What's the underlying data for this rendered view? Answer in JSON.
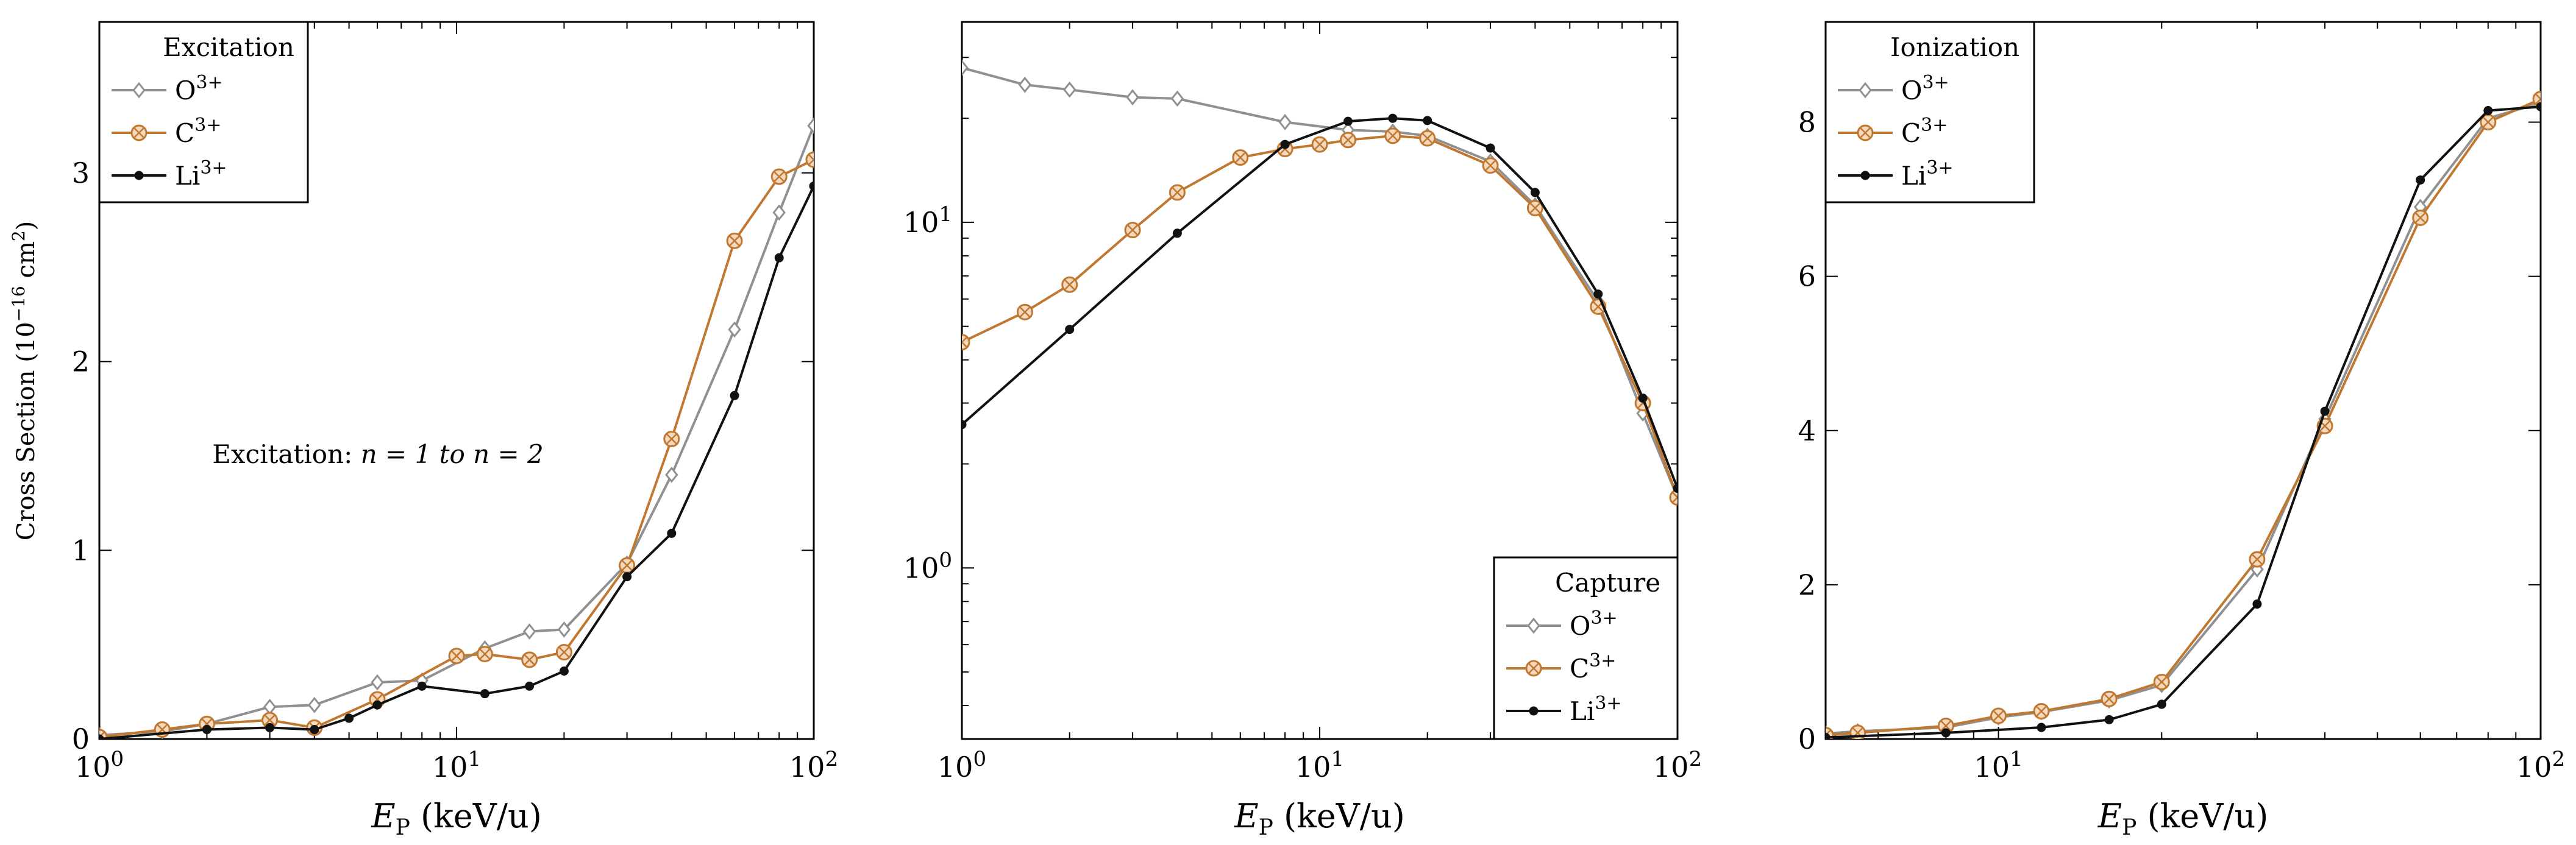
{
  "chart_data": [
    {
      "type": "line",
      "panel": "excitation",
      "xscale": "log",
      "yscale": "linear",
      "xlim": [
        1,
        100
      ],
      "ylim": [
        0,
        3.8
      ],
      "xticks": [
        1,
        10,
        100
      ],
      "xticklabels": [
        "10^0",
        "10^1",
        "10^2"
      ],
      "yticks": [
        0,
        1,
        2,
        3
      ],
      "yticklabels": [
        "0",
        "1",
        "2",
        "3"
      ],
      "xlabel": {
        "main": "E",
        "sub": "P",
        "rest": " (keV/u)"
      },
      "ylabel": {
        "pre": "Cross Section (10",
        "exp": "−16",
        "mid": " cm",
        "exp2": "2",
        "post": ")"
      },
      "annotation": {
        "text": "Excitation: ",
        "math": "n = 1 to n = 2"
      },
      "legend": {
        "title": "Excitation",
        "position": "top-left"
      },
      "series": [
        {
          "name": "O3+",
          "label": "O",
          "charge": "3+",
          "color": "#909090",
          "marker": "diamond",
          "x": [
            1,
            1.5,
            2,
            3,
            4,
            6,
            8,
            12,
            16,
            20,
            30,
            40,
            60,
            80,
            100
          ],
          "y": [
            0.02,
            0.04,
            0.08,
            0.17,
            0.18,
            0.3,
            0.31,
            0.48,
            0.57,
            0.58,
            0.93,
            1.4,
            2.17,
            2.79,
            3.25
          ]
        },
        {
          "name": "C3+",
          "label": "C",
          "charge": "3+",
          "color": "#c07830",
          "marker": "otimes",
          "x": [
            1,
            1.5,
            2,
            3,
            4,
            6,
            10,
            12,
            16,
            20,
            30,
            40,
            60,
            80,
            100
          ],
          "y": [
            0.01,
            0.05,
            0.08,
            0.1,
            0.06,
            0.21,
            0.44,
            0.45,
            0.42,
            0.46,
            0.92,
            1.59,
            2.64,
            2.98,
            3.07
          ]
        },
        {
          "name": "Li3+",
          "label": "Li",
          "charge": "3+",
          "color": "#111111",
          "marker": "dot",
          "x": [
            1,
            2,
            3,
            4,
            5,
            6,
            8,
            12,
            16,
            20,
            30,
            40,
            60,
            80,
            100
          ],
          "y": [
            0.0,
            0.05,
            0.06,
            0.05,
            0.11,
            0.18,
            0.28,
            0.24,
            0.28,
            0.36,
            0.86,
            1.09,
            1.82,
            2.55,
            2.93
          ]
        }
      ]
    },
    {
      "type": "line",
      "panel": "capture",
      "xscale": "log",
      "yscale": "log",
      "xlim": [
        1,
        100
      ],
      "ylim": [
        0.32,
        38
      ],
      "xticks": [
        1,
        10,
        100
      ],
      "xticklabels": [
        "10^0",
        "10^1",
        "10^2"
      ],
      "yticks": [
        1,
        10
      ],
      "yticklabels": [
        "10^0",
        "10^1"
      ],
      "xlabel": {
        "main": "E",
        "sub": "P",
        "rest": " (keV/u)"
      },
      "legend": {
        "title": "Capture",
        "position": "bottom-right"
      },
      "series": [
        {
          "name": "O3+",
          "label": "O",
          "charge": "3+",
          "color": "#909090",
          "marker": "diamond",
          "x": [
            1,
            1.5,
            2,
            3,
            4,
            8,
            12,
            16,
            20,
            30,
            40,
            60,
            80,
            100
          ],
          "y": [
            28,
            25,
            24.2,
            23,
            22.8,
            19.5,
            18.5,
            18.3,
            17.8,
            15,
            11.2,
            5.9,
            2.8,
            1.6
          ]
        },
        {
          "name": "C3+",
          "label": "C",
          "charge": "3+",
          "color": "#c07830",
          "marker": "otimes",
          "x": [
            1,
            1.5,
            2,
            3,
            4,
            6,
            8,
            10,
            12,
            16,
            20,
            30,
            40,
            60,
            80,
            100
          ],
          "y": [
            4.5,
            5.5,
            6.6,
            9.5,
            12.2,
            15.4,
            16.3,
            16.8,
            17.3,
            17.8,
            17.5,
            14.6,
            11.0,
            5.7,
            3.0,
            1.6
          ]
        },
        {
          "name": "Li3+",
          "label": "Li",
          "charge": "3+",
          "color": "#111111",
          "marker": "dot",
          "x": [
            1,
            2,
            4,
            8,
            12,
            16,
            20,
            30,
            40,
            60,
            80,
            100
          ],
          "y": [
            2.6,
            4.9,
            9.3,
            16.8,
            19.6,
            20.0,
            19.7,
            16.4,
            12.2,
            6.2,
            3.1,
            1.7
          ]
        }
      ]
    },
    {
      "type": "line",
      "panel": "ionization",
      "xscale": "log",
      "yscale": "linear",
      "xlim": [
        4.8,
        100
      ],
      "ylim": [
        0,
        9.3
      ],
      "xticks": [
        10,
        100
      ],
      "xticklabels": [
        "10^1",
        "10^2"
      ],
      "yticks": [
        0,
        2,
        4,
        6,
        8
      ],
      "yticklabels": [
        "0",
        "2",
        "4",
        "6",
        "8"
      ],
      "xlabel": {
        "main": "E",
        "sub": "P",
        "rest": " (keV/u)"
      },
      "legend": {
        "title": "Ionization",
        "position": "top-left"
      },
      "series": [
        {
          "name": "O3+",
          "label": "O",
          "charge": "3+",
          "color": "#909090",
          "marker": "diamond",
          "x": [
            4.8,
            5.5,
            8,
            10,
            12,
            16,
            20,
            30,
            40,
            60,
            80,
            100
          ],
          "y": [
            0.07,
            0.1,
            0.15,
            0.28,
            0.35,
            0.5,
            0.7,
            2.2,
            4.15,
            6.9,
            8.05,
            8.25
          ]
        },
        {
          "name": "C3+",
          "label": "C",
          "charge": "3+",
          "color": "#c07830",
          "marker": "otimes",
          "x": [
            4.8,
            5.5,
            8,
            10,
            12,
            16,
            20,
            30,
            40,
            60,
            80,
            100
          ],
          "y": [
            0.05,
            0.08,
            0.17,
            0.3,
            0.36,
            0.52,
            0.74,
            2.33,
            4.06,
            6.76,
            8.0,
            8.3
          ]
        },
        {
          "name": "Li3+",
          "label": "Li",
          "charge": "3+",
          "color": "#111111",
          "marker": "dot",
          "x": [
            4.8,
            8,
            12,
            16,
            20,
            30,
            40,
            60,
            80,
            100
          ],
          "y": [
            0.02,
            0.08,
            0.15,
            0.25,
            0.45,
            1.75,
            4.25,
            7.25,
            8.15,
            8.2
          ]
        }
      ]
    }
  ]
}
